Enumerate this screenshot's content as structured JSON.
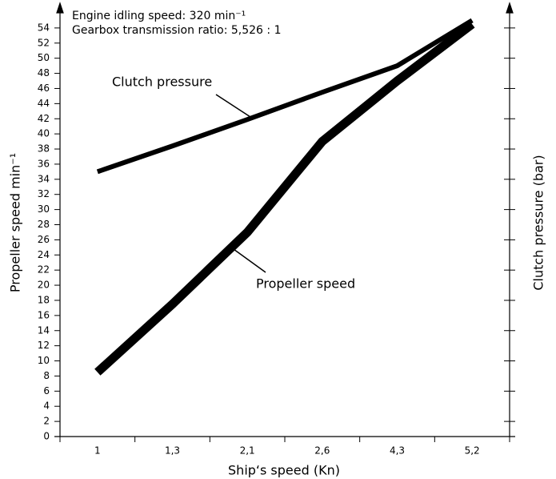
{
  "chart_data": {
    "type": "line",
    "annotations": [
      "Engine idling speed: 320 min⁻¹",
      "Gearbox transmission ratio: 5,526 : 1"
    ],
    "xlabel": "Ship‘s speed (Kn)",
    "ylabel": "Propeller speed min⁻¹",
    "y2label": "Clutch pressure (bar)",
    "categories": [
      "1",
      "1,3",
      "2,1",
      "2,6",
      "4,3",
      "5,2"
    ],
    "ylim": [
      0,
      56
    ],
    "yticks": [
      0,
      2,
      4,
      6,
      8,
      10,
      12,
      14,
      16,
      18,
      20,
      22,
      24,
      26,
      28,
      30,
      32,
      34,
      36,
      38,
      40,
      42,
      44,
      46,
      48,
      50,
      52,
      54
    ],
    "y2lim": [
      0,
      56
    ],
    "y2ticks": [
      2,
      6,
      10,
      14,
      18,
      22,
      26,
      30,
      34,
      38,
      42,
      46,
      50,
      54
    ],
    "y2tick_labels": false,
    "series": [
      {
        "name": "Clutch pressure",
        "color": "#000000",
        "axis": "y2",
        "width": 6,
        "values": [
          35,
          38.4,
          41.9,
          45.5,
          49,
          55
        ]
      },
      {
        "name": "Propeller speed",
        "color": "#000000",
        "width": 11,
        "values": [
          8.5,
          17.5,
          27,
          39,
          47,
          54.5
        ]
      }
    ]
  }
}
